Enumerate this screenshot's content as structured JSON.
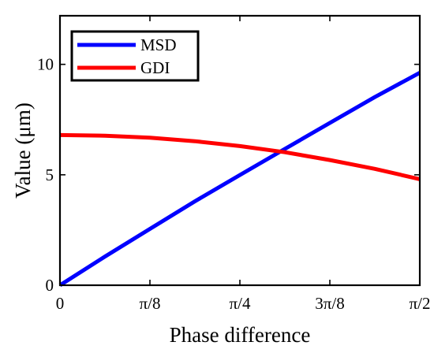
{
  "chart_data": {
    "type": "line",
    "title": "",
    "xlabel": "Phase difference",
    "ylabel": "Value (μm)",
    "xlim": [
      0,
      1.5708
    ],
    "ylim": [
      0,
      12.2
    ],
    "x_ticks": [
      {
        "value": 0,
        "label": "0"
      },
      {
        "value": 0.3927,
        "label": "π/8"
      },
      {
        "value": 0.7854,
        "label": "π/4"
      },
      {
        "value": 1.1781,
        "label": "3π/8"
      },
      {
        "value": 1.5708,
        "label": "π/2"
      }
    ],
    "y_ticks": [
      {
        "value": 0,
        "label": "0"
      },
      {
        "value": 5,
        "label": "5"
      },
      {
        "value": 10,
        "label": "10"
      }
    ],
    "grid": false,
    "legend_position": "top-left",
    "x": [
      0,
      0.1963,
      0.3927,
      0.589,
      0.7854,
      0.9817,
      1.1781,
      1.3744,
      1.5708
    ],
    "series": [
      {
        "name": "MSD",
        "color": "#0000ff",
        "values": [
          0,
          1.3,
          2.55,
          3.8,
          4.99,
          6.17,
          7.35,
          8.52,
          9.62
        ]
      },
      {
        "name": "GDI",
        "color": "#ff0000",
        "values": [
          6.8,
          6.77,
          6.68,
          6.52,
          6.3,
          6.02,
          5.67,
          5.27,
          4.8
        ]
      }
    ]
  }
}
